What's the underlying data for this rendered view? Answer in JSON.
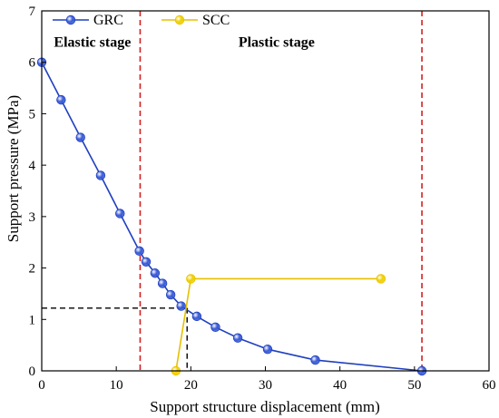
{
  "chart_data": {
    "type": "line",
    "xlabel": "Support structure displacement (mm)",
    "ylabel": "Support pressure (MPa)",
    "xlim": [
      0,
      60
    ],
    "ylim": [
      0,
      7
    ],
    "xticks": [
      0,
      10,
      20,
      30,
      40,
      50,
      60
    ],
    "yticks": [
      0,
      1,
      2,
      3,
      4,
      5,
      6,
      7
    ],
    "grid": false,
    "legend_position": "top-left",
    "series": [
      {
        "name": "GRC",
        "color": "#1f3fbf",
        "marker_color": "#3a5bd6",
        "x": [
          0,
          2.6,
          5.2,
          7.9,
          10.5,
          13.1,
          14.0,
          15.2,
          16.2,
          17.3,
          18.7,
          20.8,
          23.3,
          26.3,
          30.3,
          36.7,
          51.0
        ],
        "y": [
          6.0,
          5.27,
          4.54,
          3.8,
          3.06,
          2.33,
          2.12,
          1.9,
          1.7,
          1.48,
          1.26,
          1.06,
          0.85,
          0.64,
          0.42,
          0.21,
          0.0
        ]
      },
      {
        "name": "SCC",
        "color": "#e6c100",
        "marker_color": "#f0d000",
        "x": [
          18.0,
          20.0,
          45.5
        ],
        "y": [
          0.0,
          1.79,
          1.79
        ]
      }
    ],
    "vertical_lines": [
      {
        "x": 13.2,
        "color": "#d42020"
      },
      {
        "x": 51.0,
        "color": "#d42020"
      }
    ],
    "equilibrium_guides": {
      "x": 19.5,
      "y": 1.22,
      "color": "#000000"
    },
    "annotations": [
      {
        "text": "Elastic stage",
        "x": 6.8,
        "y": 6.3
      },
      {
        "text": "Plastic stage",
        "x": 31.5,
        "y": 6.3
      }
    ]
  }
}
